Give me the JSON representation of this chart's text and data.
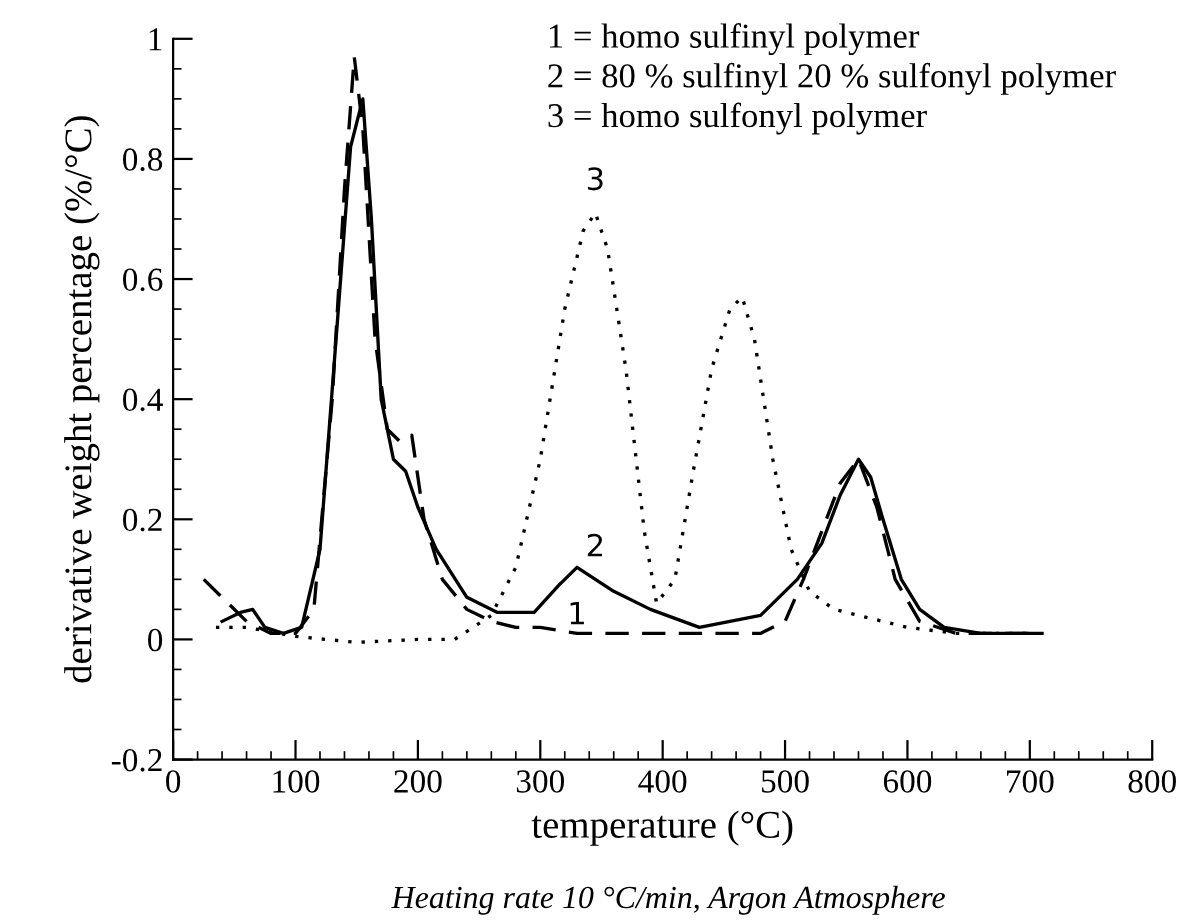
{
  "chart_data": {
    "type": "line",
    "xlabel": "temperature (°C)",
    "ylabel": "derivative weight percentage (%/°C)",
    "xlim": [
      0,
      800
    ],
    "xticks": [
      0,
      100,
      200,
      300,
      400,
      500,
      600,
      700,
      800
    ],
    "ylim": [
      -0.2,
      1
    ],
    "yticks": [
      -0.2,
      0,
      0.2,
      0.4,
      0.6,
      0.8,
      1
    ],
    "grid": false,
    "legend": false,
    "marker": "none",
    "series": [
      {
        "name": "1",
        "color": "#000000",
        "line_style": "dashed",
        "x": [
          25,
          40,
          60,
          80,
          100,
          115,
          130,
          140,
          148,
          155,
          165,
          175,
          185,
          195,
          205,
          220,
          240,
          260,
          280,
          300,
          330,
          360,
          400,
          440,
          480,
          500,
          515,
          530,
          545,
          560,
          575,
          590,
          610,
          640,
          680,
          710
        ],
        "values": [
          0.1,
          0.07,
          0.03,
          0.01,
          0.01,
          0.05,
          0.4,
          0.75,
          0.97,
          0.85,
          0.5,
          0.35,
          0.33,
          0.34,
          0.2,
          0.1,
          0.05,
          0.03,
          0.02,
          0.02,
          0.01,
          0.01,
          0.01,
          0.01,
          0.01,
          0.03,
          0.1,
          0.18,
          0.26,
          0.3,
          0.22,
          0.1,
          0.03,
          0.01,
          0.01,
          0.01
        ]
      },
      {
        "name": "2",
        "color": "#000000",
        "line_style": "solid",
        "x": [
          40,
          55,
          65,
          75,
          90,
          105,
          120,
          135,
          145,
          155,
          162,
          170,
          180,
          190,
          200,
          215,
          240,
          265,
          295,
          315,
          330,
          345,
          360,
          390,
          430,
          480,
          510,
          530,
          545,
          560,
          570,
          580,
          595,
          610,
          630,
          660,
          710
        ],
        "values": [
          0.03,
          0.045,
          0.05,
          0.02,
          0.01,
          0.02,
          0.15,
          0.55,
          0.82,
          0.9,
          0.7,
          0.4,
          0.3,
          0.28,
          0.22,
          0.15,
          0.07,
          0.045,
          0.045,
          0.09,
          0.12,
          0.1,
          0.08,
          0.05,
          0.02,
          0.04,
          0.1,
          0.16,
          0.24,
          0.3,
          0.27,
          0.2,
          0.1,
          0.05,
          0.02,
          0.01,
          0.01
        ]
      },
      {
        "name": "3",
        "color": "#000000",
        "line_style": "dotted",
        "x": [
          35,
          60,
          100,
          150,
          200,
          230,
          260,
          280,
          300,
          320,
          335,
          345,
          355,
          370,
          385,
          395,
          410,
          425,
          440,
          455,
          465,
          475,
          490,
          505,
          520,
          540,
          560,
          600,
          640,
          700
        ],
        "values": [
          0.02,
          0.02,
          0.005,
          -0.005,
          0.0,
          0.0,
          0.04,
          0.12,
          0.3,
          0.55,
          0.68,
          0.71,
          0.65,
          0.45,
          0.18,
          0.06,
          0.1,
          0.28,
          0.45,
          0.55,
          0.57,
          0.5,
          0.3,
          0.15,
          0.08,
          0.05,
          0.04,
          0.02,
          0.01,
          0.01
        ]
      }
    ],
    "annotations": [
      "1 = homo sulfinyl polymer",
      "2 = 80 % sulfinyl 20 % sulfonyl polymer",
      "3 = homo sulfonyl polymer",
      "Heating rate 10 °C/min, Argon Atmosphere"
    ]
  }
}
